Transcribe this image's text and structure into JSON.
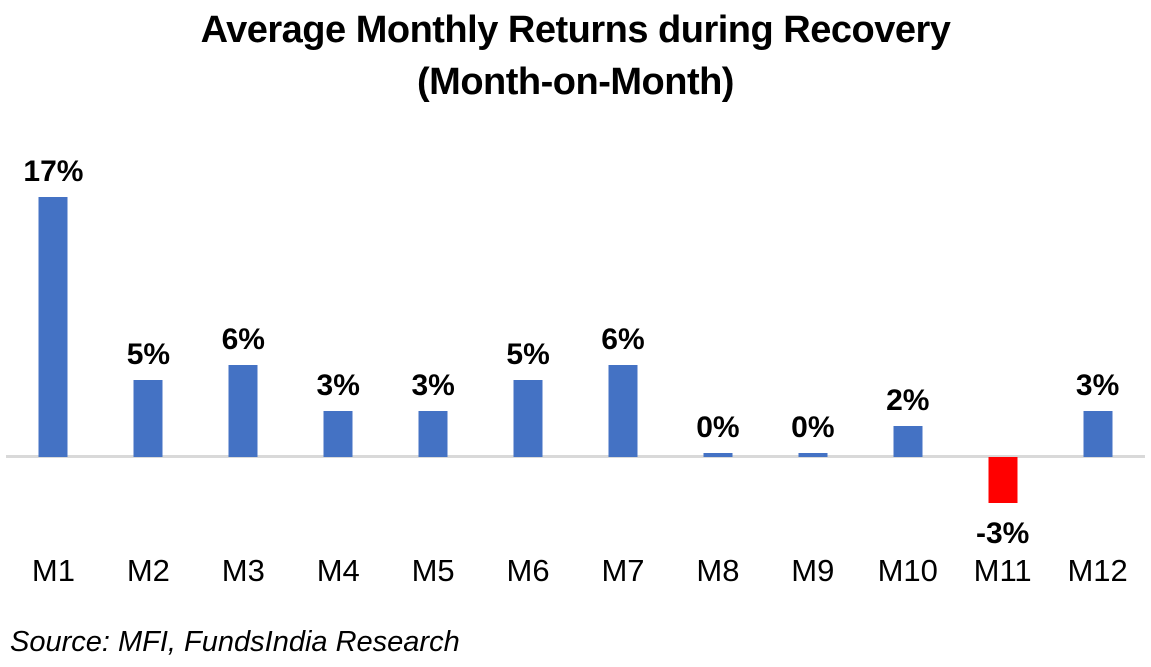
{
  "title": {
    "line1": "Average Monthly Returns during Recovery",
    "line2": "(Month-on-Month)"
  },
  "source": "Source: MFI, FundsIndia Research",
  "chart_data": {
    "type": "bar",
    "title": "Average Monthly Returns during Recovery (Month-on-Month)",
    "categories": [
      "M1",
      "M2",
      "M3",
      "M4",
      "M5",
      "M6",
      "M7",
      "M8",
      "M9",
      "M10",
      "M11",
      "M12"
    ],
    "values": [
      17,
      5,
      6,
      3,
      3,
      5,
      6,
      0,
      0,
      2,
      -3,
      3
    ],
    "data_labels": [
      "17%",
      "5%",
      "6%",
      "3%",
      "3%",
      "5%",
      "6%",
      "0%",
      "0%",
      "2%",
      "-3%",
      "3%"
    ],
    "unit": "percent",
    "xlabel": "",
    "ylabel": "",
    "ylim": [
      -4,
      18
    ],
    "grid": false,
    "legend": false,
    "colors": {
      "bar_positive": "#4472C4",
      "bar_negative": "#FF0000",
      "axis_line": "#D9D9D9",
      "text": "#000000"
    }
  }
}
